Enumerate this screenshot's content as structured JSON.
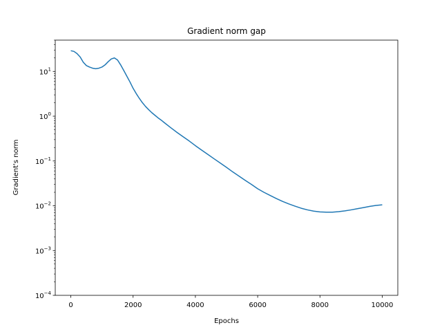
{
  "chart_data": {
    "type": "line",
    "title": "Gradient norm gap",
    "xlabel": "Epochs",
    "ylabel": "Gradient's norm",
    "xlim": [
      -500,
      10500
    ],
    "ylim": [
      0.0001,
      50
    ],
    "yscale": "log",
    "grid": false,
    "x_ticks": [
      0,
      2000,
      4000,
      6000,
      8000,
      10000
    ],
    "x_tick_labels": [
      "0",
      "2000",
      "4000",
      "6000",
      "8000",
      "10000"
    ],
    "y_ticks": [
      0.0001,
      0.001,
      0.01,
      0.1,
      1,
      10
    ],
    "y_tick_labels": [
      {
        "base": "10",
        "exp": "−4"
      },
      {
        "base": "10",
        "exp": "−3"
      },
      {
        "base": "10",
        "exp": "−2"
      },
      {
        "base": "10",
        "exp": "−1"
      },
      {
        "base": "10",
        "exp": "0"
      },
      {
        "base": "10",
        "exp": "1"
      }
    ],
    "series": [
      {
        "color": "#1f77b4",
        "x": [
          0,
          100,
          200,
          300,
          400,
          500,
          600,
          700,
          800,
          900,
          1000,
          1100,
          1200,
          1300,
          1400,
          1500,
          1600,
          1700,
          1800,
          1900,
          2000,
          2100,
          2200,
          2300,
          2400,
          2500,
          2600,
          2700,
          2800,
          2900,
          3000,
          3200,
          3400,
          3600,
          3800,
          4000,
          4200,
          4400,
          4600,
          4800,
          5000,
          5200,
          5400,
          5600,
          5800,
          6000,
          6200,
          6400,
          6600,
          6800,
          7000,
          7200,
          7400,
          7600,
          7800,
          8000,
          8200,
          8400,
          8600,
          8800,
          9000,
          9200,
          9400,
          9600,
          9800,
          10000
        ],
        "y": [
          29,
          28,
          25,
          21,
          16,
          13.5,
          12.5,
          11.8,
          11.5,
          11.8,
          12.5,
          14,
          16.5,
          19,
          20,
          18,
          14,
          10.5,
          7.8,
          5.8,
          4.2,
          3.2,
          2.5,
          2.0,
          1.65,
          1.4,
          1.2,
          1.05,
          0.92,
          0.82,
          0.72,
          0.56,
          0.44,
          0.35,
          0.28,
          0.22,
          0.175,
          0.14,
          0.112,
          0.09,
          0.072,
          0.057,
          0.046,
          0.037,
          0.03,
          0.024,
          0.02,
          0.017,
          0.0145,
          0.0125,
          0.011,
          0.0098,
          0.0088,
          0.0081,
          0.0076,
          0.0073,
          0.0072,
          0.0072,
          0.0074,
          0.0077,
          0.0081,
          0.0086,
          0.0091,
          0.0097,
          0.0102,
          0.0105
        ]
      }
    ]
  }
}
